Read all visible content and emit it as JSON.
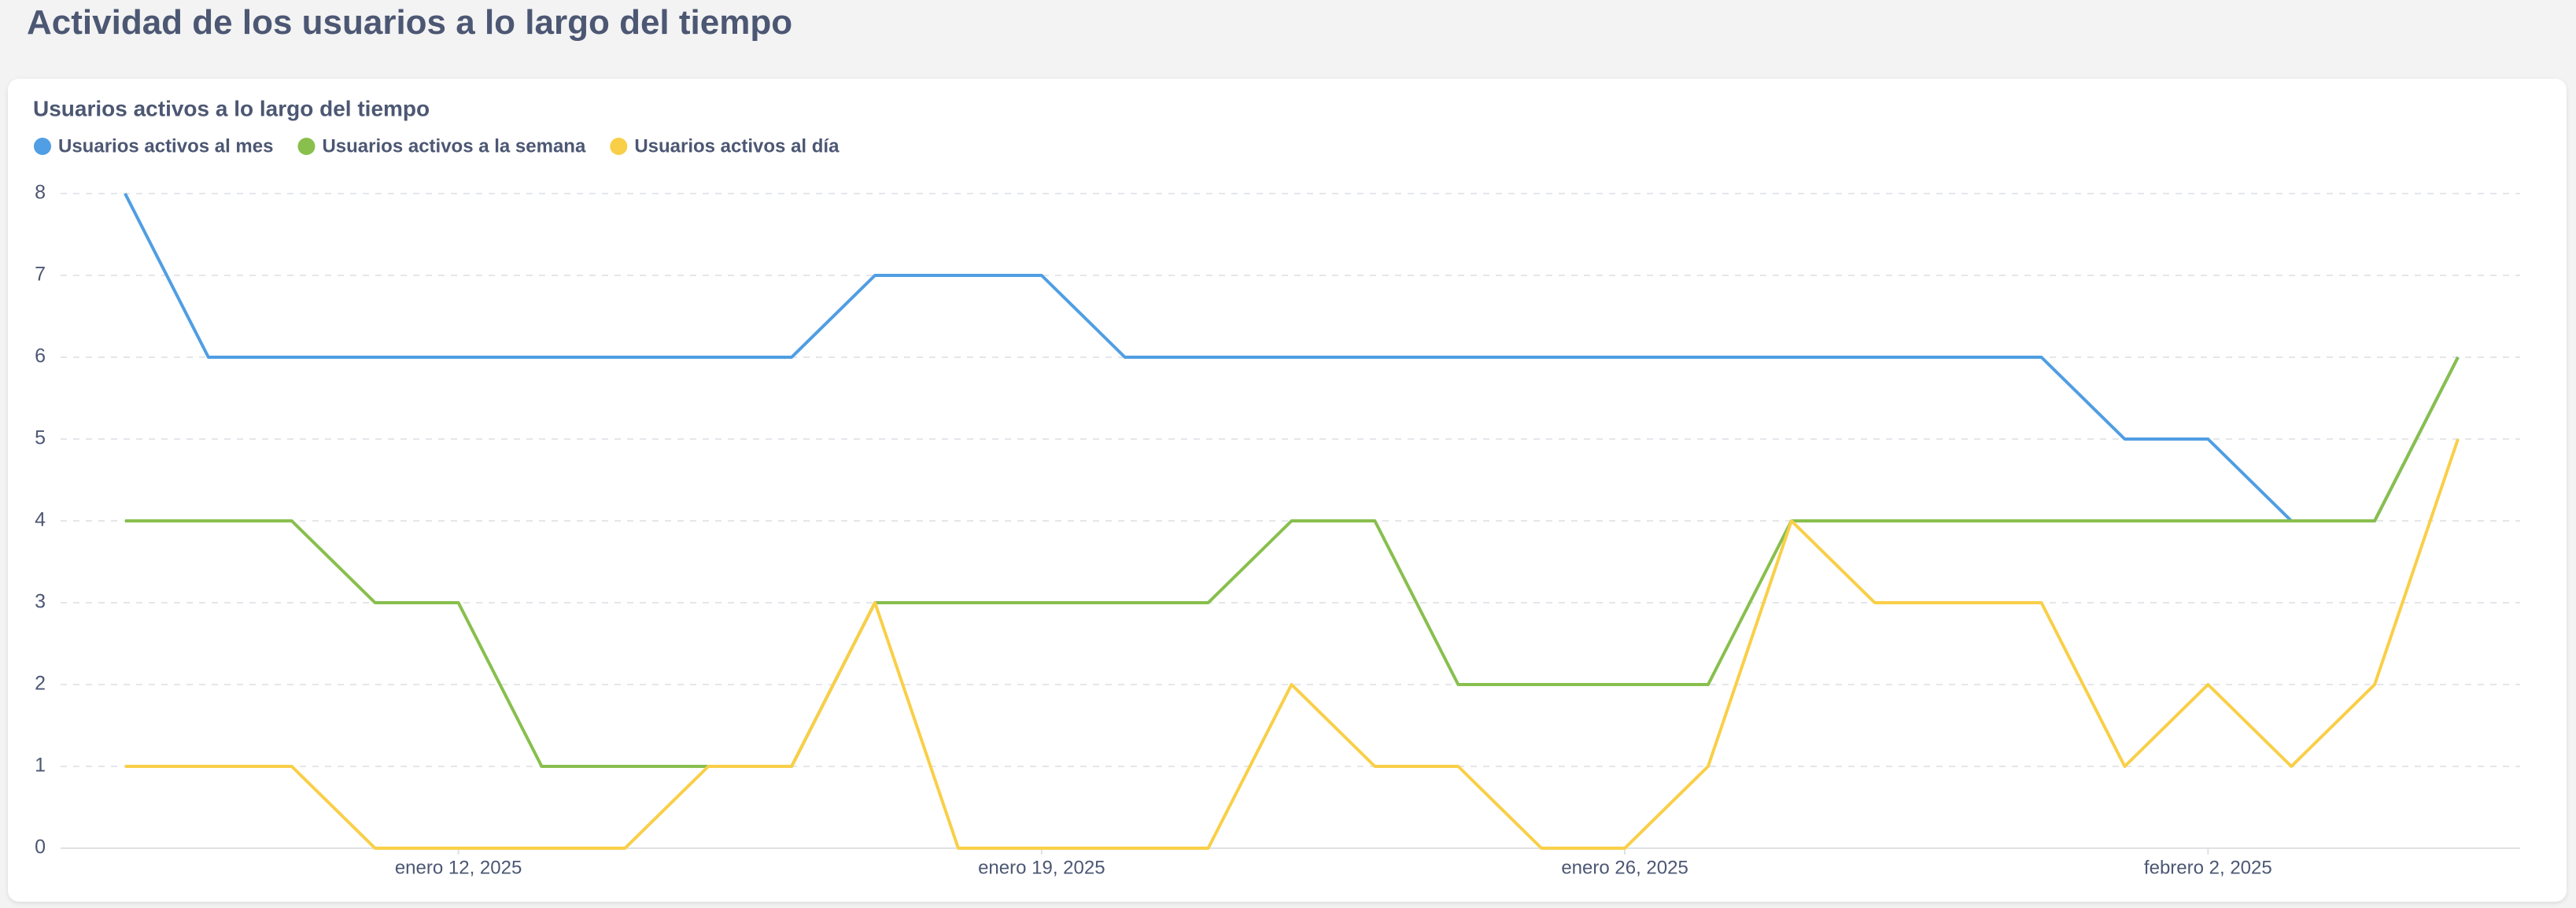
{
  "header": {
    "title": "Actividad de los usuarios a lo largo del tiempo"
  },
  "chart_data": {
    "type": "line",
    "title": "Usuarios activos a lo largo del tiempo",
    "x": [
      "2025-01-08",
      "2025-01-09",
      "2025-01-10",
      "2025-01-11",
      "2025-01-12",
      "2025-01-13",
      "2025-01-14",
      "2025-01-15",
      "2025-01-16",
      "2025-01-17",
      "2025-01-18",
      "2025-01-19",
      "2025-01-20",
      "2025-01-21",
      "2025-01-22",
      "2025-01-23",
      "2025-01-24",
      "2025-01-25",
      "2025-01-26",
      "2025-01-27",
      "2025-01-28",
      "2025-01-29",
      "2025-01-30",
      "2025-01-31",
      "2025-02-01",
      "2025-02-02",
      "2025-02-03",
      "2025-02-04",
      "2025-02-05"
    ],
    "series": [
      {
        "name": "Usuarios activos al mes",
        "color": "#509EE3",
        "values": [
          8,
          6,
          6,
          6,
          6,
          6,
          6,
          6,
          6,
          7,
          7,
          7,
          6,
          6,
          6,
          6,
          6,
          6,
          6,
          6,
          6,
          6,
          6,
          6,
          5,
          5,
          4,
          4,
          6
        ]
      },
      {
        "name": "Usuarios activos a la semana",
        "color": "#88BF4D",
        "values": [
          4,
          4,
          4,
          3,
          3,
          1,
          1,
          1,
          1,
          3,
          3,
          3,
          3,
          3,
          4,
          4,
          2,
          2,
          2,
          2,
          4,
          4,
          4,
          4,
          4,
          4,
          4,
          4,
          6
        ]
      },
      {
        "name": "Usuarios activos al día",
        "color": "#F9CF48",
        "values": [
          1,
          1,
          1,
          0,
          0,
          0,
          0,
          1,
          1,
          3,
          0,
          0,
          0,
          0,
          2,
          1,
          1,
          0,
          0,
          1,
          4,
          3,
          3,
          3,
          1,
          2,
          1,
          2,
          5
        ]
      }
    ],
    "xticks": [
      {
        "value": "2025-01-12",
        "label": "enero 12, 2025"
      },
      {
        "value": "2025-01-19",
        "label": "enero 19, 2025"
      },
      {
        "value": "2025-01-26",
        "label": "enero 26, 2025"
      },
      {
        "value": "2025-02-02",
        "label": "febrero 2, 2025"
      }
    ],
    "ylim": [
      0,
      8
    ],
    "yticks": [
      0,
      1,
      2,
      3,
      4,
      5,
      6,
      7,
      8
    ],
    "grid": true,
    "legend": "top"
  }
}
